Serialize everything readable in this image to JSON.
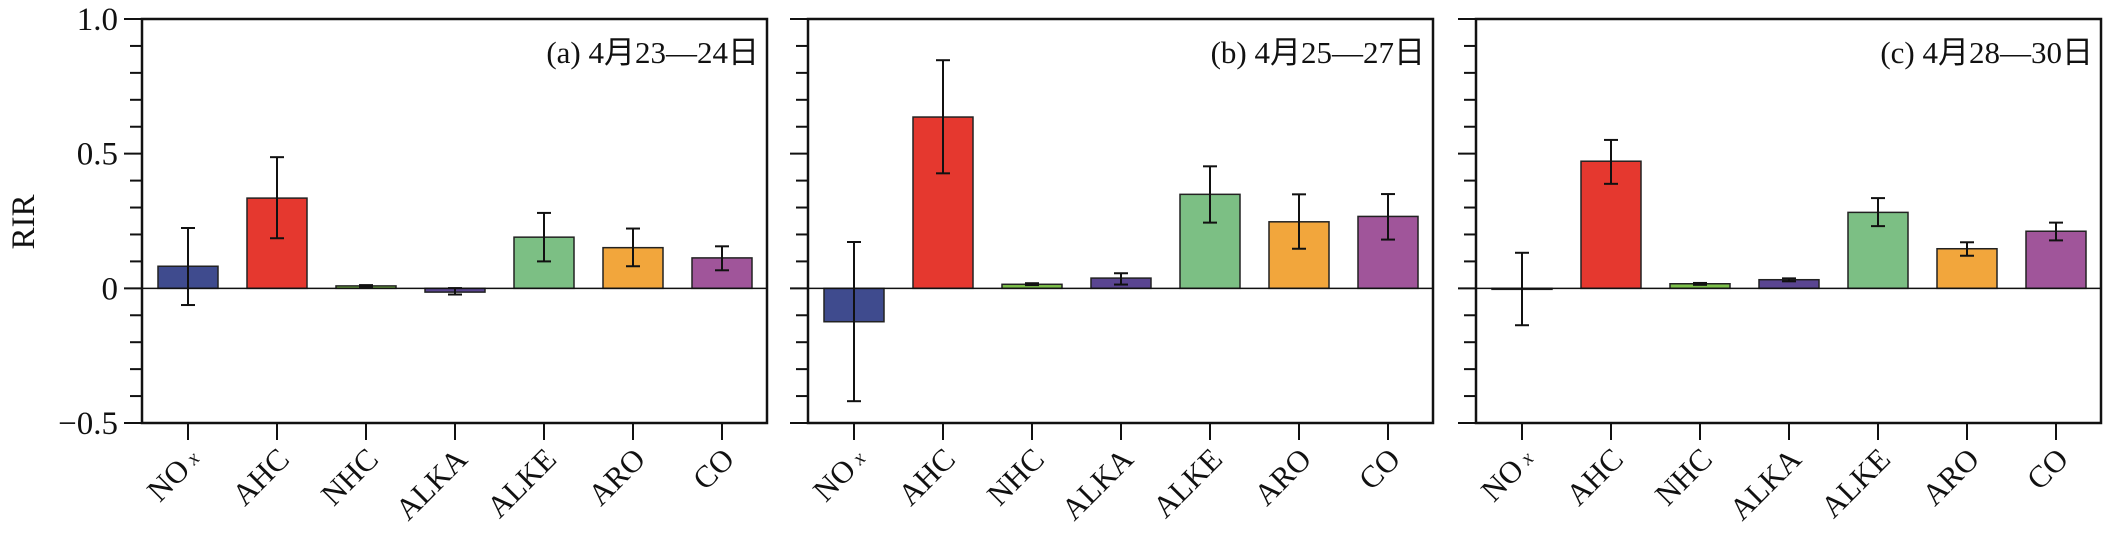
{
  "chart_data": {
    "type": "bar",
    "ylabel": "RIR",
    "ylim": [
      -0.5,
      1.0
    ],
    "yticks": [
      {
        "value": 1.0,
        "label": "1.0"
      },
      {
        "value": 0.5,
        "label": "0.5"
      },
      {
        "value": 0,
        "label": "0"
      },
      {
        "value": -0.5,
        "label": "−0.5"
      }
    ],
    "minor_tick_step": 0.1,
    "grid": false,
    "categories": [
      {
        "main": "NO",
        "sub": "x"
      },
      {
        "main": "AHC",
        "sub": ""
      },
      {
        "main": "NHC",
        "sub": ""
      },
      {
        "main": "ALKA",
        "sub": ""
      },
      {
        "main": "ALKE",
        "sub": ""
      },
      {
        "main": "ARO",
        "sub": ""
      },
      {
        "main": "CO",
        "sub": ""
      }
    ],
    "colors": [
      "#3f4b8e",
      "#e5382f",
      "#7cc04a",
      "#5a4591",
      "#7cbf84",
      "#f2a63c",
      "#a0559a"
    ],
    "panels": [
      {
        "title": "(a) 4月23—24日",
        "values": [
          0.082,
          0.335,
          0.009,
          -0.014,
          0.19,
          0.151,
          0.113
        ],
        "err_high": [
          0.224,
          0.487,
          0.012,
          0.001,
          0.28,
          0.222,
          0.156
        ],
        "err_low": [
          -0.062,
          0.186,
          0.006,
          -0.023,
          0.1,
          0.082,
          0.067
        ]
      },
      {
        "title": "(b) 4月25—27日",
        "values": [
          -0.124,
          0.636,
          0.015,
          0.038,
          0.349,
          0.247,
          0.267
        ],
        "err_high": [
          0.172,
          0.847,
          0.019,
          0.056,
          0.453,
          0.349,
          0.35
        ],
        "err_low": [
          -0.419,
          0.427,
          0.012,
          0.014,
          0.244,
          0.147,
          0.181
        ]
      },
      {
        "title": "(c) 4月28—30日",
        "values": [
          -0.003,
          0.472,
          0.017,
          0.032,
          0.282,
          0.147,
          0.212
        ],
        "err_high": [
          0.132,
          0.551,
          0.02,
          0.037,
          0.335,
          0.171,
          0.244
        ],
        "err_low": [
          -0.137,
          0.388,
          0.013,
          0.026,
          0.231,
          0.121,
          0.178
        ]
      }
    ]
  }
}
